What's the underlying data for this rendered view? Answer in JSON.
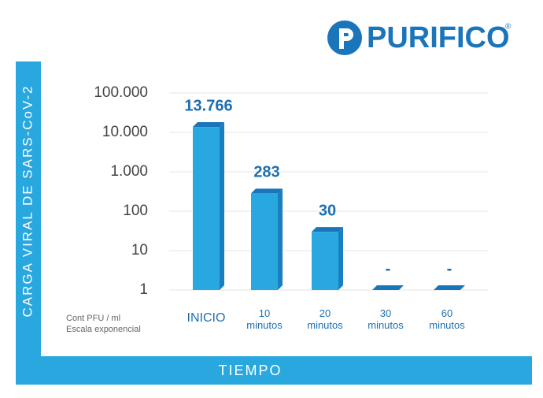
{
  "logo": "PURIFICO",
  "logo_mark": "®",
  "chart_data": {
    "type": "bar",
    "log_scale": true,
    "grid": true,
    "y_label": "CARGA VIRAL DE SARS-CoV-2",
    "x_label": "TIEMPO",
    "notes": [
      "Cont PFU / ml",
      "Escala exponencial"
    ],
    "categories": [
      "INICIO",
      "10 minutos",
      "20 minutos",
      "30 minutos",
      "60 minutos"
    ],
    "values": [
      13766,
      283,
      30,
      null,
      null
    ],
    "value_labels": [
      "13.766",
      "283",
      "30",
      "-",
      "-"
    ],
    "color": "#29a8e0",
    "ylim": [
      1,
      100000
    ],
    "yticks": [
      {
        "value": 100000,
        "label": "100.000"
      },
      {
        "value": 10000,
        "label": "10.000"
      },
      {
        "value": 1000,
        "label": "1.000"
      },
      100,
      10,
      1
    ]
  }
}
